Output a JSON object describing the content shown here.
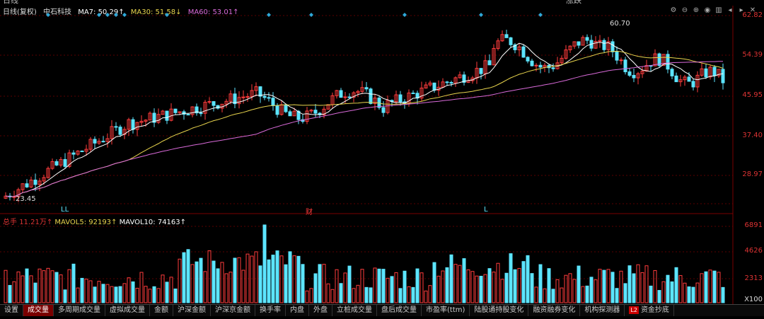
{
  "title_strip": {
    "left": "日线",
    "right": "涨跌"
  },
  "legend": {
    "label": "日线(复权)",
    "name": "中石科技",
    "ma7_label": "MA7: 50.29↑",
    "ma30_label": "MA30: 51.58↓",
    "ma60_label": "MA60: 53.01↑"
  },
  "price_axis": [
    "62.82",
    "54.39",
    "45.95",
    "37.40",
    "28.97"
  ],
  "annotations": {
    "high": "60.70",
    "low": "23.45",
    "mark_ll": "LL",
    "mark_cai": "财",
    "mark_l": "L"
  },
  "volume": {
    "label": "总手",
    "value": "11.21万↑",
    "mavol5": "MAVOL5: 92193↑",
    "mavol10": "MAVOL10: 74163↑"
  },
  "volume_axis": [
    "6891",
    "4626",
    "2313",
    "X100"
  ],
  "tabs": [
    "设置",
    "成交量",
    "多周期成交量",
    "虚拟成交量",
    "金额",
    "沪深金额",
    "沪深京金额",
    "换手率",
    "内盘",
    "外盘",
    "立桩成交量",
    "盘后成交量",
    "市盈率(ttm)",
    "陆股通持股变化",
    "融资融券变化",
    "机构探测器",
    "资金抄底"
  ],
  "tab_l2_badge": "L2",
  "colors": {
    "up": "#ff3c3c",
    "down": "#5ce5ff",
    "ma7": "#ffffff",
    "ma30": "#e8d44d",
    "ma60": "#d96ad9",
    "grid": "#5a0000"
  }
}
